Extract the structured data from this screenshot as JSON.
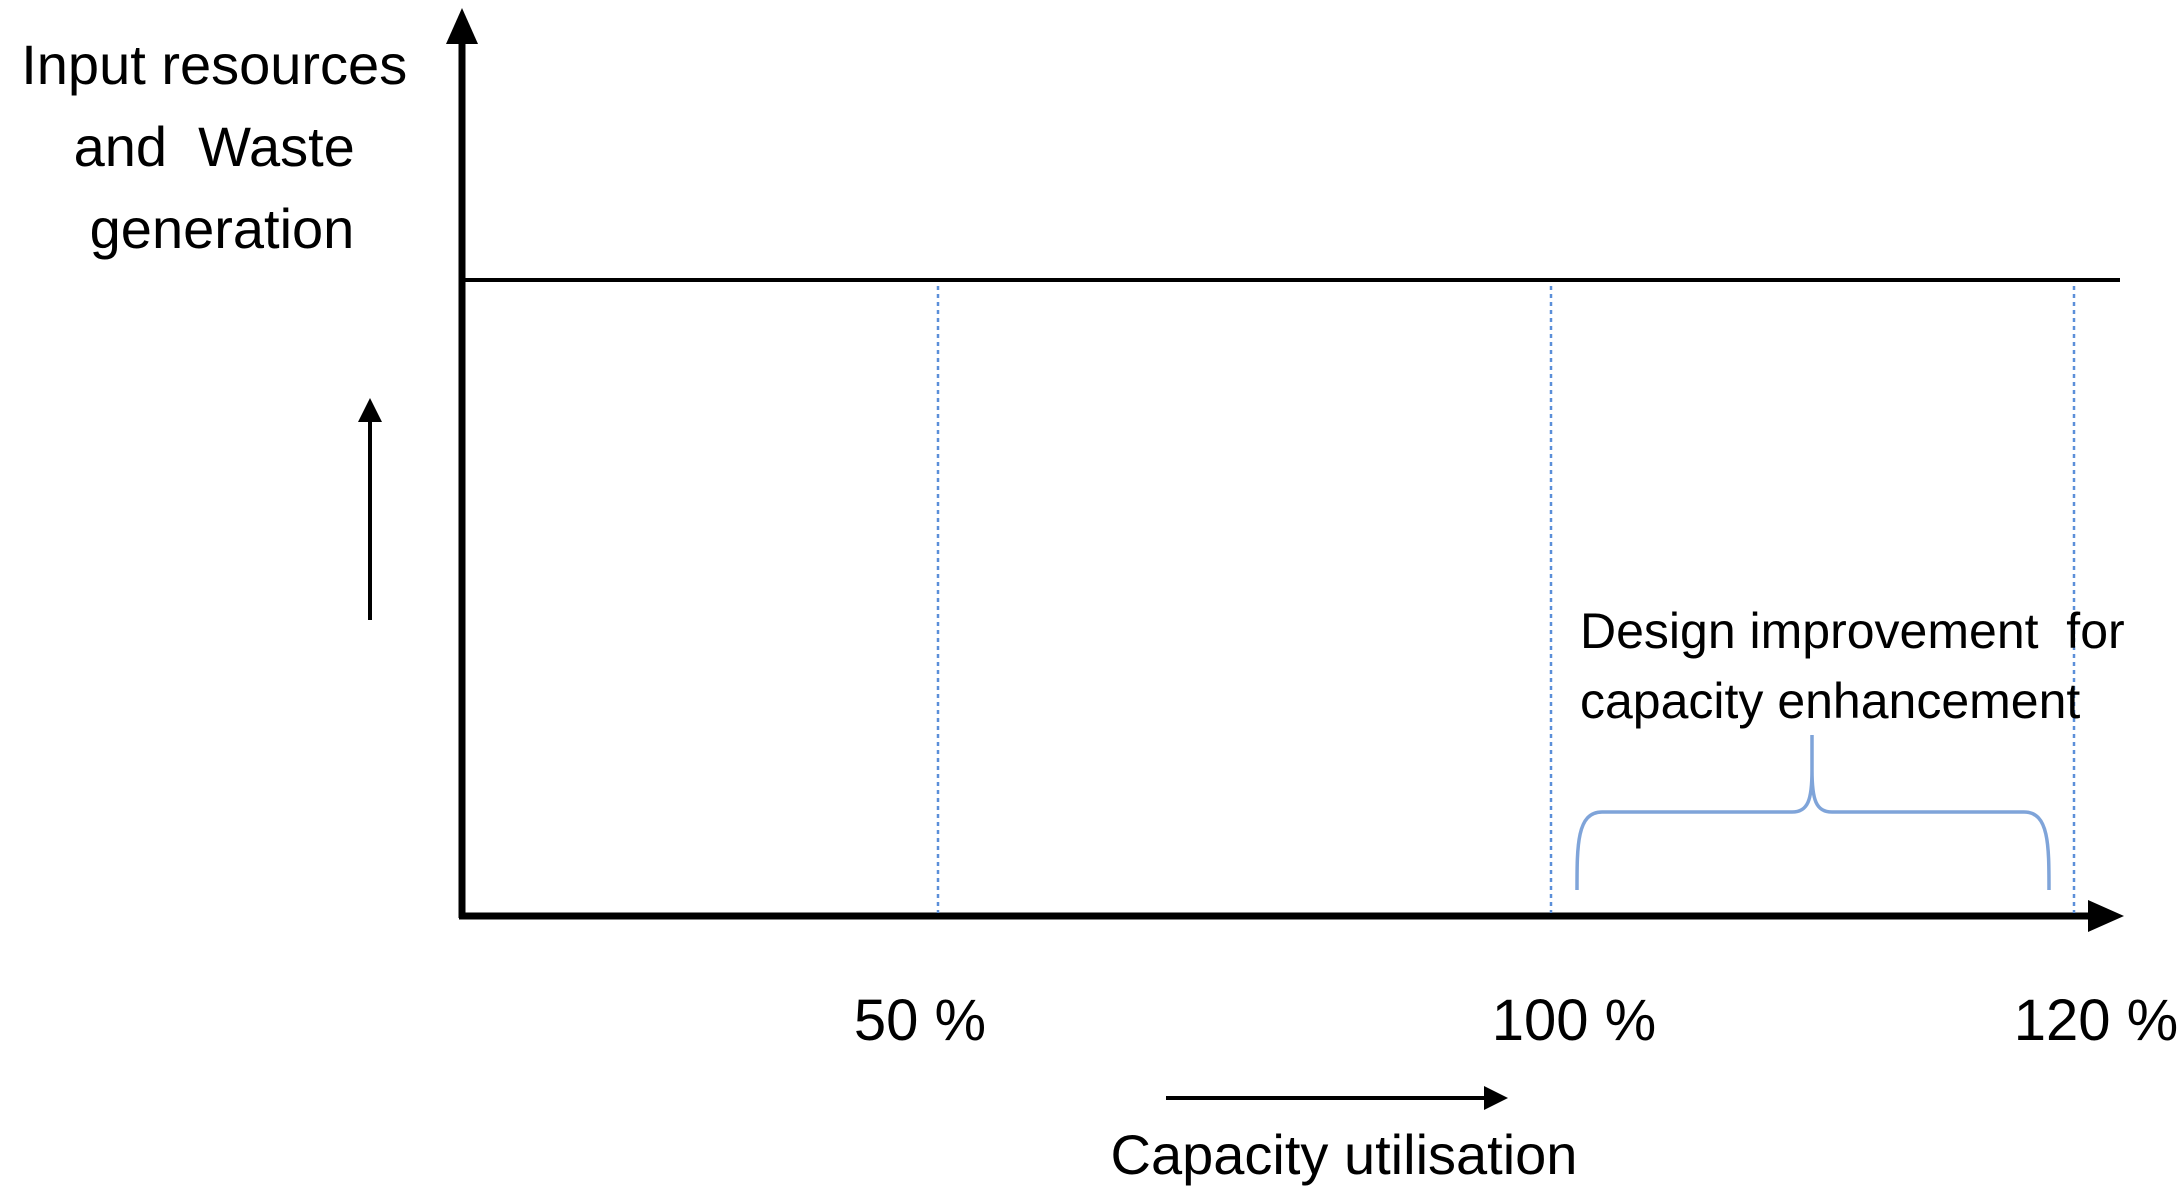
{
  "y_axis_label": {
    "lines": [
      "Input resources",
      "and  Waste",
      "generation"
    ]
  },
  "x_axis_label": "Capacity utilisation",
  "markers": [
    {
      "label": "50 %",
      "value": 50
    },
    {
      "label": "100 %",
      "value": 100
    },
    {
      "label": "120 %",
      "value": 120
    }
  ],
  "annotation": {
    "lines": [
      "Design improvement  for",
      "capacity enhancement"
    ],
    "range_from": 100,
    "range_to": 120
  },
  "colors": {
    "axis": "#000000",
    "guide_line": "#5b8fd9",
    "brace": "#7fa4d9",
    "text": "#000000"
  }
}
